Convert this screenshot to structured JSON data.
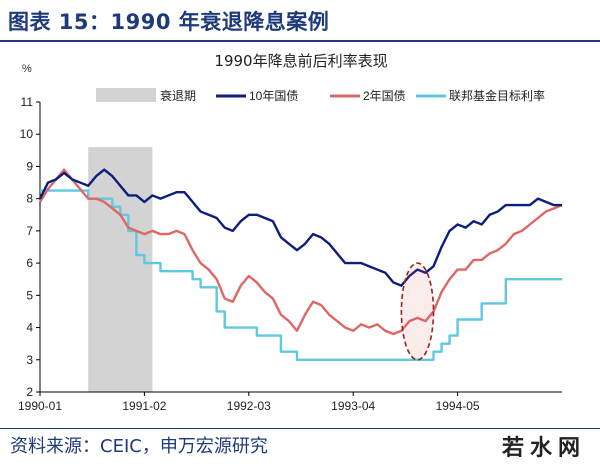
{
  "figure_title": "图表 15：1990 年衰退降息案例",
  "source": "资料来源：CEIC，申万宏源研究",
  "watermark": "若水网",
  "colors": {
    "recession": "#d3d3d3",
    "ten_year": "#0b1f7a",
    "two_year": "#e06666",
    "fed_target": "#5ec8e0",
    "title_blue": "#1f3a7a",
    "highlight": "#a02020"
  },
  "chart_data": {
    "type": "line",
    "title": "1990年降息前后利率表现",
    "ylabel": "%",
    "ylim": [
      2,
      11
    ],
    "yticks": [
      2,
      3,
      4,
      5,
      6,
      7,
      8,
      9,
      10,
      11
    ],
    "xlim": [
      "1990-01",
      "1995-06"
    ],
    "xticks": [
      "1990-01",
      "1991-02",
      "1992-03",
      "1993-04",
      "1994-05"
    ],
    "grid": false,
    "legend_position": "top",
    "recession": {
      "label": "衰退期",
      "start": "1990-07",
      "end": "1991-03"
    },
    "highlight_period": {
      "start": "1993-10",
      "end": "1994-02",
      "ymin": 3.0,
      "ymax": 6.0
    },
    "series": [
      {
        "name": "10年国债",
        "points": [
          [
            "1990-01",
            8.0
          ],
          [
            "1990-02",
            8.5
          ],
          [
            "1990-03",
            8.6
          ],
          [
            "1990-04",
            8.8
          ],
          [
            "1990-05",
            8.6
          ],
          [
            "1990-06",
            8.5
          ],
          [
            "1990-07",
            8.4
          ],
          [
            "1990-08",
            8.7
          ],
          [
            "1990-09",
            8.9
          ],
          [
            "1990-10",
            8.7
          ],
          [
            "1990-11",
            8.4
          ],
          [
            "1990-12",
            8.1
          ],
          [
            "1991-01",
            8.1
          ],
          [
            "1991-02",
            7.9
          ],
          [
            "1991-03",
            8.1
          ],
          [
            "1991-04",
            8.0
          ],
          [
            "1991-05",
            8.1
          ],
          [
            "1991-06",
            8.2
          ],
          [
            "1991-07",
            8.2
          ],
          [
            "1991-08",
            7.9
          ],
          [
            "1991-09",
            7.6
          ],
          [
            "1991-10",
            7.5
          ],
          [
            "1991-11",
            7.4
          ],
          [
            "1991-12",
            7.1
          ],
          [
            "1992-01",
            7.0
          ],
          [
            "1992-02",
            7.3
          ],
          [
            "1992-03",
            7.5
          ],
          [
            "1992-04",
            7.5
          ],
          [
            "1992-05",
            7.4
          ],
          [
            "1992-06",
            7.3
          ],
          [
            "1992-07",
            6.8
          ],
          [
            "1992-08",
            6.6
          ],
          [
            "1992-09",
            6.4
          ],
          [
            "1992-10",
            6.6
          ],
          [
            "1992-11",
            6.9
          ],
          [
            "1992-12",
            6.8
          ],
          [
            "1993-01",
            6.6
          ],
          [
            "1993-02",
            6.3
          ],
          [
            "1993-03",
            6.0
          ],
          [
            "1993-04",
            6.0
          ],
          [
            "1993-05",
            6.0
          ],
          [
            "1993-06",
            5.9
          ],
          [
            "1993-07",
            5.8
          ],
          [
            "1993-08",
            5.7
          ],
          [
            "1993-09",
            5.4
          ],
          [
            "1993-10",
            5.3
          ],
          [
            "1993-11",
            5.6
          ],
          [
            "1993-12",
            5.8
          ],
          [
            "1994-01",
            5.7
          ],
          [
            "1994-02",
            5.9
          ],
          [
            "1994-03",
            6.5
          ],
          [
            "1994-04",
            7.0
          ],
          [
            "1994-05",
            7.2
          ],
          [
            "1994-06",
            7.1
          ],
          [
            "1994-07",
            7.3
          ],
          [
            "1994-08",
            7.2
          ],
          [
            "1994-09",
            7.5
          ],
          [
            "1994-10",
            7.6
          ],
          [
            "1994-11",
            7.8
          ],
          [
            "1994-12",
            7.8
          ],
          [
            "1995-01",
            7.8
          ],
          [
            "1995-02",
            7.8
          ],
          [
            "1995-03",
            8.0
          ],
          [
            "1995-04",
            7.9
          ],
          [
            "1995-05",
            7.8
          ],
          [
            "1995-06",
            7.8
          ]
        ]
      },
      {
        "name": "2年国债",
        "points": [
          [
            "1990-01",
            7.9
          ],
          [
            "1990-02",
            8.3
          ],
          [
            "1990-03",
            8.6
          ],
          [
            "1990-04",
            8.9
          ],
          [
            "1990-05",
            8.6
          ],
          [
            "1990-06",
            8.3
          ],
          [
            "1990-07",
            8.0
          ],
          [
            "1990-08",
            8.0
          ],
          [
            "1990-09",
            7.9
          ],
          [
            "1990-10",
            7.7
          ],
          [
            "1990-11",
            7.5
          ],
          [
            "1990-12",
            7.1
          ],
          [
            "1991-01",
            7.0
          ],
          [
            "1991-02",
            6.9
          ],
          [
            "1991-03",
            7.0
          ],
          [
            "1991-04",
            6.9
          ],
          [
            "1991-05",
            6.9
          ],
          [
            "1991-06",
            7.0
          ],
          [
            "1991-07",
            6.9
          ],
          [
            "1991-08",
            6.4
          ],
          [
            "1991-09",
            6.0
          ],
          [
            "1991-10",
            5.8
          ],
          [
            "1991-11",
            5.5
          ],
          [
            "1991-12",
            4.9
          ],
          [
            "1992-01",
            4.8
          ],
          [
            "1992-02",
            5.3
          ],
          [
            "1992-03",
            5.6
          ],
          [
            "1992-04",
            5.4
          ],
          [
            "1992-05",
            5.1
          ],
          [
            "1992-06",
            4.9
          ],
          [
            "1992-07",
            4.4
          ],
          [
            "1992-08",
            4.2
          ],
          [
            "1992-09",
            3.9
          ],
          [
            "1992-10",
            4.4
          ],
          [
            "1992-11",
            4.8
          ],
          [
            "1992-12",
            4.7
          ],
          [
            "1993-01",
            4.4
          ],
          [
            "1993-02",
            4.2
          ],
          [
            "1993-03",
            4.0
          ],
          [
            "1993-04",
            3.9
          ],
          [
            "1993-05",
            4.1
          ],
          [
            "1993-06",
            4.0
          ],
          [
            "1993-07",
            4.1
          ],
          [
            "1993-08",
            3.9
          ],
          [
            "1993-09",
            3.8
          ],
          [
            "1993-10",
            3.9
          ],
          [
            "1993-11",
            4.2
          ],
          [
            "1993-12",
            4.3
          ],
          [
            "1994-01",
            4.2
          ],
          [
            "1994-02",
            4.5
          ],
          [
            "1994-03",
            5.1
          ],
          [
            "1994-04",
            5.5
          ],
          [
            "1994-05",
            5.8
          ],
          [
            "1994-06",
            5.8
          ],
          [
            "1994-07",
            6.1
          ],
          [
            "1994-08",
            6.1
          ],
          [
            "1994-09",
            6.3
          ],
          [
            "1994-10",
            6.4
          ],
          [
            "1994-11",
            6.6
          ],
          [
            "1994-12",
            6.9
          ],
          [
            "1995-01",
            7.0
          ],
          [
            "1995-02",
            7.2
          ],
          [
            "1995-03",
            7.4
          ],
          [
            "1995-04",
            7.6
          ],
          [
            "1995-05",
            7.7
          ],
          [
            "1995-06",
            7.8
          ]
        ]
      },
      {
        "name": "联邦基金目标利率",
        "step": true,
        "points": [
          [
            "1990-01",
            8.25
          ],
          [
            "1990-07",
            8.0
          ],
          [
            "1990-10",
            7.75
          ],
          [
            "1990-11",
            7.5
          ],
          [
            "1990-12",
            7.0
          ],
          [
            "1991-01",
            6.25
          ],
          [
            "1991-02",
            6.0
          ],
          [
            "1991-04",
            5.75
          ],
          [
            "1991-08",
            5.5
          ],
          [
            "1991-09",
            5.25
          ],
          [
            "1991-11",
            4.5
          ],
          [
            "1991-12",
            4.0
          ],
          [
            "1992-04",
            3.75
          ],
          [
            "1992-07",
            3.25
          ],
          [
            "1992-09",
            3.0
          ],
          [
            "1994-02",
            3.25
          ],
          [
            "1994-03",
            3.5
          ],
          [
            "1994-04",
            3.75
          ],
          [
            "1994-05",
            4.25
          ],
          [
            "1994-08",
            4.75
          ],
          [
            "1994-11",
            5.5
          ],
          [
            "1995-06",
            5.5
          ]
        ]
      }
    ]
  }
}
